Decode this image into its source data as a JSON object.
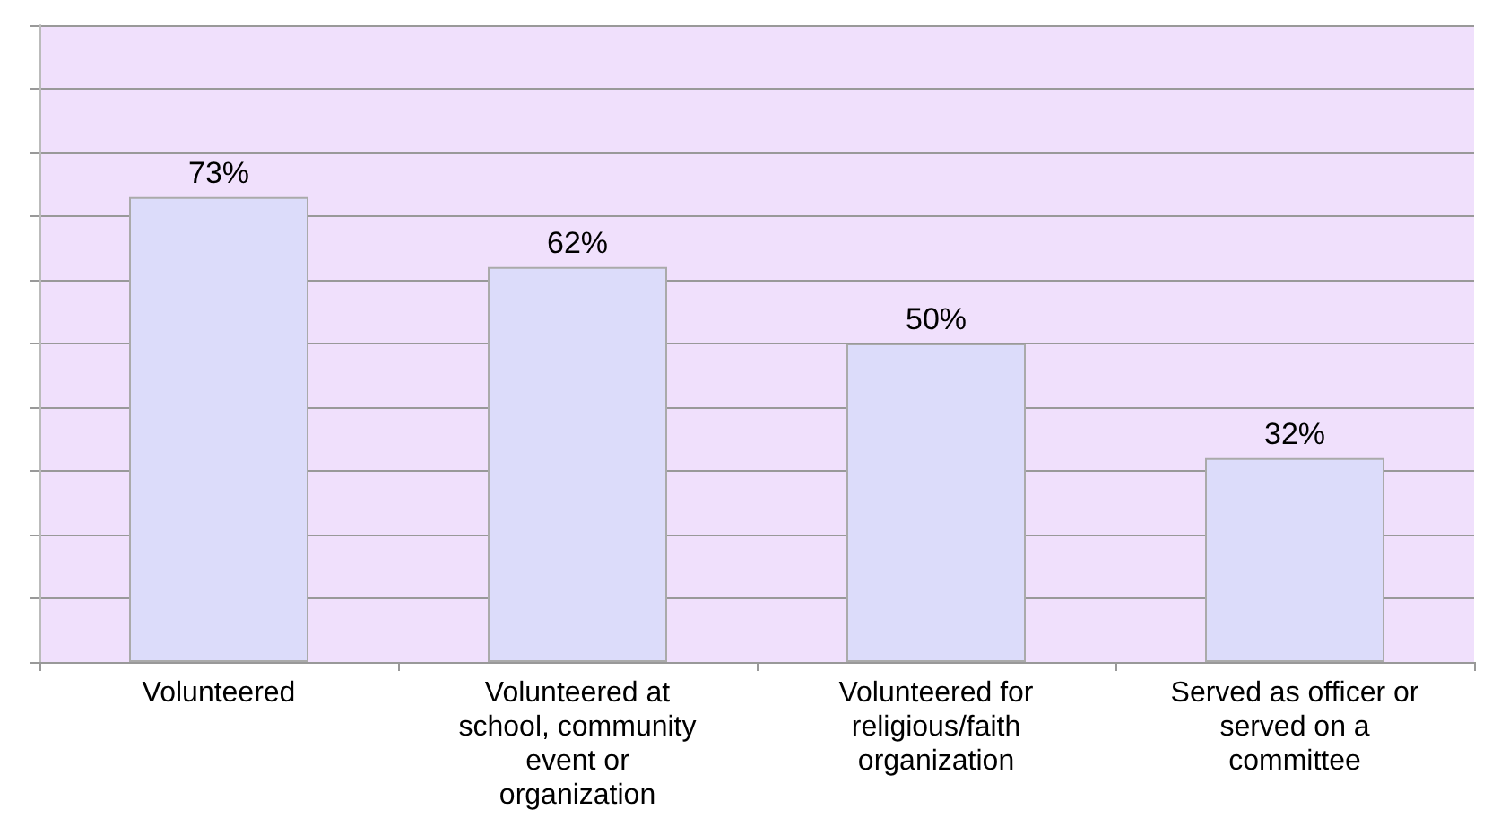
{
  "chart_data": {
    "type": "bar",
    "categories": [
      "Volunteered",
      "Volunteered at school, community event or organization",
      "Volunteered for religious/faith organization",
      "Served as officer or served on a committee"
    ],
    "values": [
      73,
      62,
      50,
      32
    ],
    "value_labels": [
      "73%",
      "62%",
      "50%",
      "32%"
    ],
    "color": "#dcdcfa",
    "ylim": [
      0,
      100
    ],
    "yticks": [
      {
        "value": 0,
        "label": null
      },
      {
        "value": 10,
        "label": null
      },
      {
        "value": 20,
        "label": null
      },
      {
        "value": 30,
        "label": null
      },
      {
        "value": 40,
        "label": null
      },
      {
        "value": 50,
        "label": null
      },
      {
        "value": 60,
        "label": null
      },
      {
        "value": 70,
        "label": null
      },
      {
        "value": 80,
        "label": null
      },
      {
        "value": 90,
        "label": null
      },
      {
        "value": 100,
        "label": null
      }
    ],
    "grid": true,
    "tick_labels": "x"
  }
}
